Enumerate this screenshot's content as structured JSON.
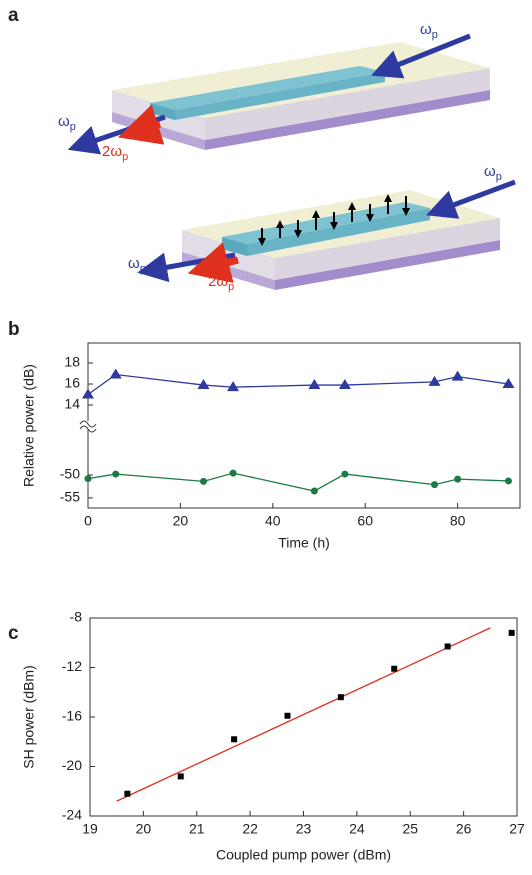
{
  "panel_labels": [
    "a",
    "b",
    "c"
  ],
  "diagram": {
    "labels": [
      {
        "main": "ω",
        "sub": "p"
      },
      {
        "main": "ω",
        "sub": "p"
      },
      {
        "main": "2ω",
        "sub": "p"
      },
      {
        "main": "ω",
        "sub": "p"
      },
      {
        "main": "ω",
        "sub": "p"
      },
      {
        "main": "2ω",
        "sub": "p"
      }
    ]
  },
  "chart_data": [
    {
      "type": "line",
      "xlabel": "Time (h)",
      "ylabel": "Relative power (dB)",
      "xlim": [
        0,
        93.5
      ],
      "xticks": [
        0,
        20,
        40,
        60,
        80
      ],
      "ylim": [
        -57.2,
        -39.1
      ],
      "yticks": [
        -55,
        -50
      ],
      "y2lim": [
        12.1,
        19.9
      ],
      "y2ticks": [
        14,
        16,
        18
      ],
      "x": [
        0,
        6,
        25,
        31.4,
        49,
        55.6,
        75,
        80,
        91
      ],
      "series": [
        {
          "color": "#2e3a9e",
          "marker": "triangle",
          "axis": "y2",
          "values": [
            15,
            16.9,
            15.9,
            15.7,
            15.9,
            15.9,
            16.2,
            16.7,
            16.0
          ]
        },
        {
          "color": "#1e7a45",
          "marker": "circle",
          "values": [
            -50.8,
            -49.8,
            -51.4,
            -49.6,
            -53.5,
            -49.8,
            -52.1,
            -50.9,
            -51.3
          ]
        }
      ]
    },
    {
      "type": "scatter",
      "xlabel": "Coupled pump power (dBm)",
      "ylabel": "SH power (dBm)",
      "xlim": [
        19,
        27
      ],
      "xticks": [
        19,
        20,
        21,
        22,
        23,
        24,
        25,
        26,
        27
      ],
      "ylim": [
        -24,
        -8
      ],
      "yticks": [
        -24,
        -20,
        -16,
        -12,
        -8
      ],
      "x": [
        19.7,
        20.7,
        21.7,
        22.7,
        23.7,
        24.7,
        25.7,
        26.9
      ],
      "values": [
        -22.2,
        -20.8,
        -17.8,
        -15.9,
        -14.4,
        -12.1,
        -10.3,
        -9.2
      ],
      "color": "#000000",
      "fit": {
        "color": "#e03020",
        "x": [
          19.5,
          26.5
        ],
        "values": [
          -22.8,
          -8.8
        ]
      }
    }
  ]
}
